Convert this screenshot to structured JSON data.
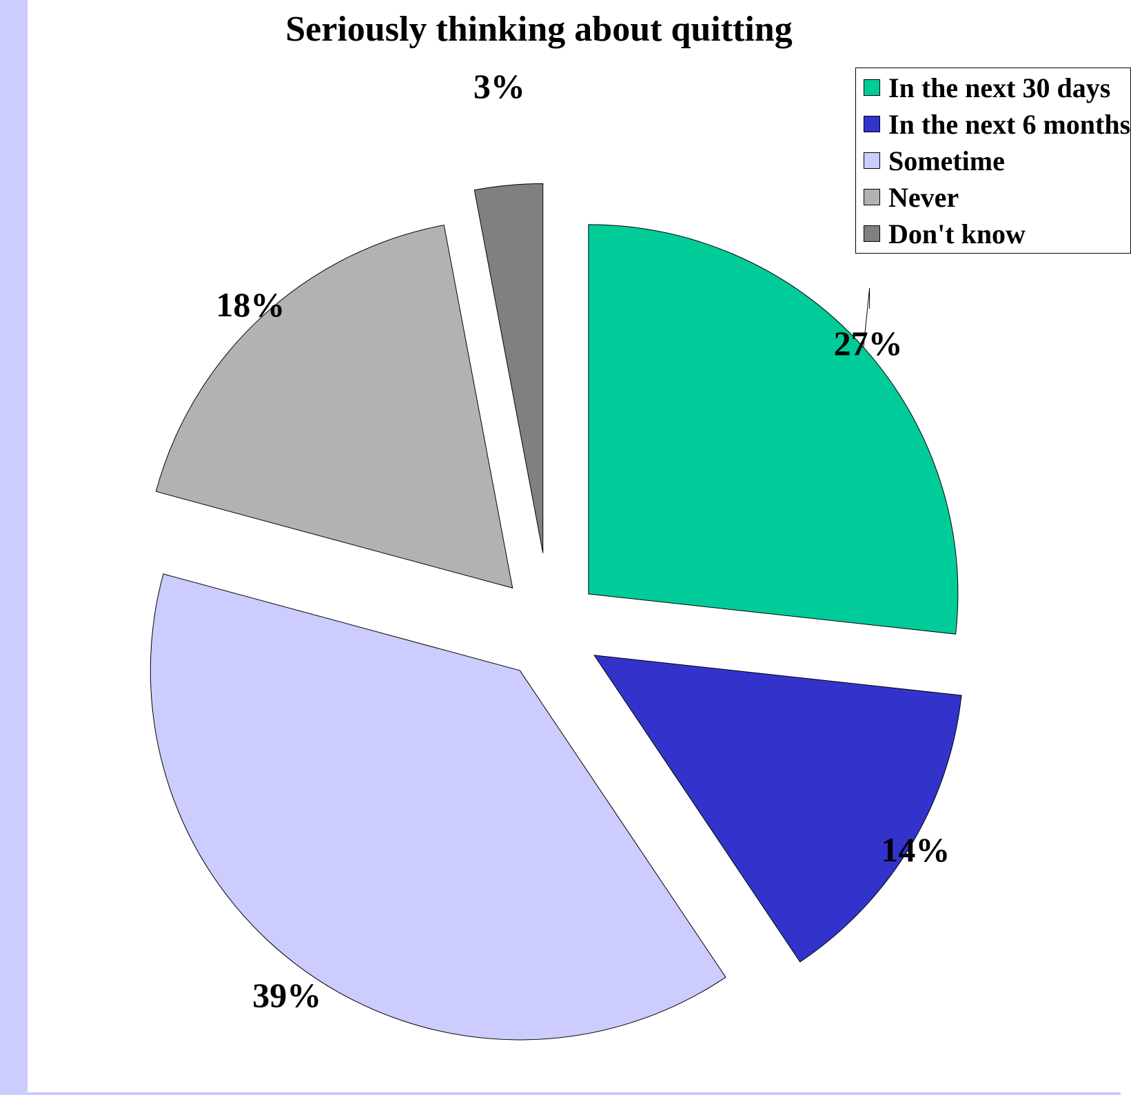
{
  "page": {
    "frame_color": "#ccccff"
  },
  "chart_data": {
    "type": "pie",
    "title": "Seriously thinking about quitting",
    "exploded": true,
    "legend_position": "top-right",
    "slices": [
      {
        "name": "In the next 30 days",
        "value": 27,
        "label": "27%",
        "color": "#00cc99"
      },
      {
        "name": "In the next 6 months",
        "value": 14,
        "label": "14%",
        "color": "#3333cc"
      },
      {
        "name": "Sometime",
        "value": 39,
        "label": "39%",
        "color": "#ccccff"
      },
      {
        "name": "Never",
        "value": 18,
        "label": "18%",
        "color": "#b2b2b2"
      },
      {
        "name": "Don't know",
        "value": 3,
        "label": "3%",
        "color": "#808080"
      }
    ]
  }
}
